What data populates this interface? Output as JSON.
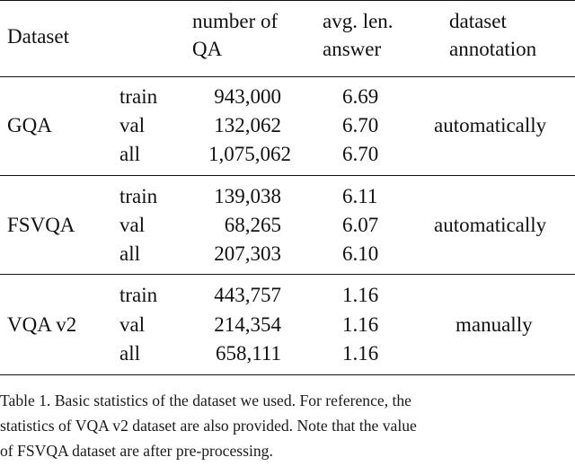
{
  "table": {
    "headers": {
      "dataset": "Dataset",
      "num_qa": [
        "number of",
        "QA"
      ],
      "avg_len": [
        "avg. len.",
        "answer"
      ],
      "annotation": [
        "dataset",
        "annotation"
      ]
    },
    "groups": [
      {
        "name": "GQA",
        "annotation": "automatically",
        "rows": [
          {
            "split": "train",
            "num_qa": "943,000",
            "avg_len": "6.69"
          },
          {
            "split": "val",
            "num_qa": "132,062",
            "avg_len": "6.70"
          },
          {
            "split": "all",
            "num_qa": "1,075,062",
            "avg_len": "6.70"
          }
        ]
      },
      {
        "name": "FSVQA",
        "annotation": "automatically",
        "rows": [
          {
            "split": "train",
            "num_qa": "139,038",
            "avg_len": "6.11"
          },
          {
            "split": "val",
            "num_qa": "68,265",
            "avg_len": "6.07"
          },
          {
            "split": "all",
            "num_qa": "207,303",
            "avg_len": "6.10"
          }
        ]
      },
      {
        "name": "VQA v2",
        "annotation": "manually",
        "rows": [
          {
            "split": "train",
            "num_qa": "443,757",
            "avg_len": "1.16"
          },
          {
            "split": "val",
            "num_qa": "214,354",
            "avg_len": "1.16"
          },
          {
            "split": "all",
            "num_qa": "658,111",
            "avg_len": "1.16"
          }
        ]
      }
    ]
  },
  "caption": {
    "lines": [
      "Table 1. Basic statistics of the dataset we used. For reference, the",
      "statistics of VQA v2 dataset are also provided. Note that the value",
      "of FSVQA dataset are after pre-processing."
    ]
  }
}
